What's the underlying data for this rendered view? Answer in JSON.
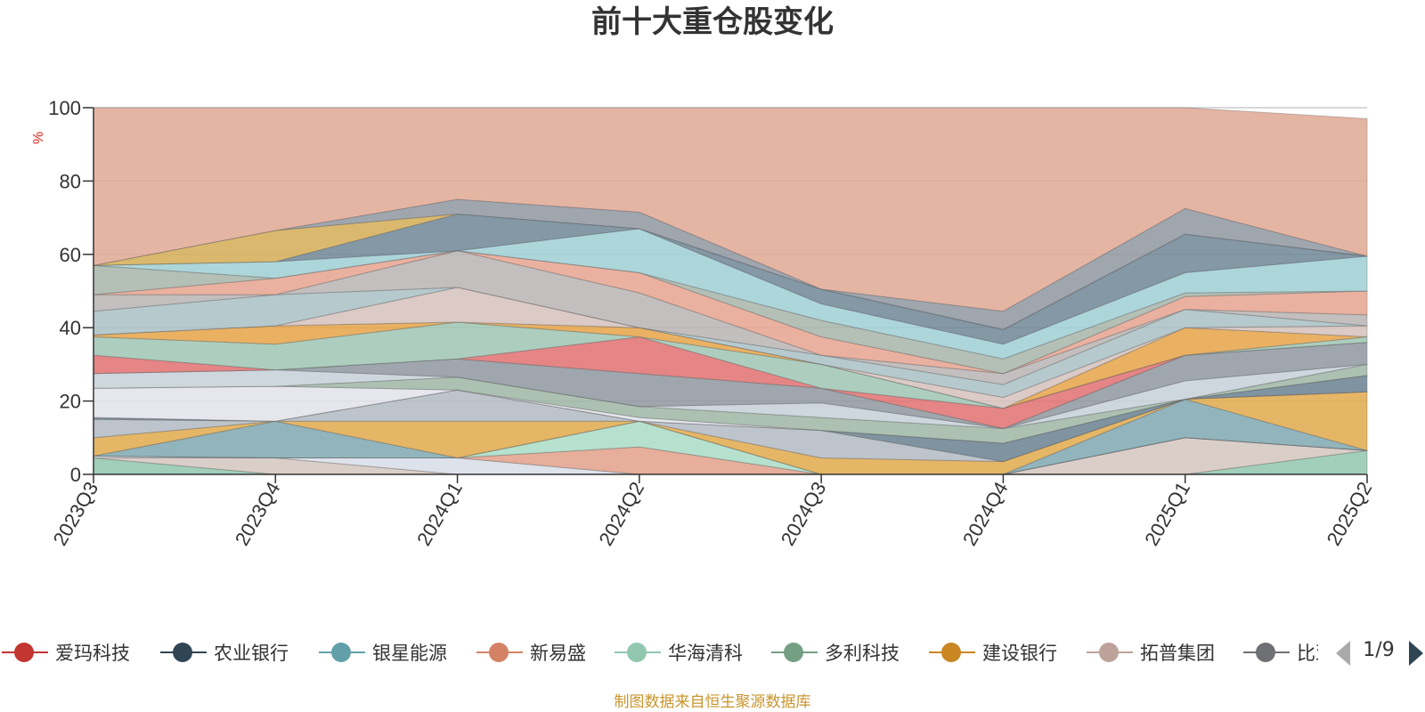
{
  "chart_data": {
    "type": "area",
    "title": "前十大重仓股变化",
    "ylabel": "%",
    "xlabel": "",
    "ylim": [
      0,
      100
    ],
    "yticks": [
      0,
      20,
      40,
      60,
      80,
      100
    ],
    "categories": [
      "2023Q3",
      "2023Q4",
      "2024Q1",
      "2024Q2",
      "2024Q3",
      "2024Q4",
      "2025Q1",
      "2025Q2"
    ],
    "stack_bounds": [
      [
        0,
        0,
        0,
        0,
        0,
        0,
        0,
        0
      ],
      [
        4.5,
        0,
        0,
        0,
        0,
        0,
        0,
        6.5
      ],
      [
        4.5,
        4.5,
        0,
        0,
        0,
        0,
        10,
        6.5
      ],
      [
        5,
        4.5,
        4.5,
        0,
        0,
        0,
        10,
        6.5
      ],
      [
        5,
        4.5,
        4.5,
        7.5,
        0,
        0,
        10,
        6.5
      ],
      [
        5,
        4.5,
        4.5,
        14.5,
        0,
        0,
        10,
        6.5
      ],
      [
        5,
        14.5,
        4.5,
        14.5,
        0,
        0,
        20.5,
        6.5
      ],
      [
        10,
        14.5,
        14.5,
        14.5,
        4.5,
        3.5,
        20.5,
        22.5
      ],
      [
        15,
        14.5,
        23,
        14.5,
        12,
        3.5,
        20.5,
        22.5
      ],
      [
        15.5,
        14.5,
        23,
        14.5,
        12,
        8.5,
        20.5,
        27
      ],
      [
        23.5,
        24,
        23,
        15.5,
        12,
        8.5,
        20.5,
        27
      ],
      [
        23.5,
        24,
        26.5,
        18.5,
        15.5,
        12.5,
        20.5,
        30
      ],
      [
        27.5,
        28.5,
        26.5,
        18.5,
        19.5,
        12.5,
        25.5,
        30
      ],
      [
        27.5,
        28.5,
        31.5,
        27.5,
        23.5,
        12.5,
        32.5,
        36
      ],
      [
        32.5,
        28.5,
        31.5,
        37.5,
        23.5,
        18,
        32.5,
        36
      ],
      [
        37.5,
        35.5,
        41.5,
        37.5,
        30,
        18,
        32.5,
        37.5
      ],
      [
        38,
        40.5,
        41.5,
        40,
        30,
        18,
        40,
        37.5
      ],
      [
        38,
        40.5,
        51,
        40,
        30,
        21,
        40,
        40.5
      ],
      [
        44.5,
        49,
        51,
        40,
        32.5,
        24.5,
        45,
        40.5
      ],
      [
        49,
        49,
        61,
        49.5,
        32.5,
        27.5,
        45,
        43.5
      ],
      [
        49,
        53.5,
        61,
        55,
        37.5,
        27.5,
        48.5,
        50
      ],
      [
        57,
        53.5,
        61,
        55,
        42,
        31.5,
        49.5,
        50
      ],
      [
        57,
        58,
        61,
        67,
        46.5,
        35.5,
        55,
        59.5
      ],
      [
        57,
        58,
        71,
        67,
        50.5,
        39.5,
        65.5,
        59.5
      ],
      [
        57,
        66.5,
        71,
        67,
        50.5,
        39.5,
        65.5,
        59.5
      ],
      [
        57,
        66.5,
        75,
        71.5,
        50.5,
        44.5,
        72.5,
        59.5
      ],
      [
        100,
        100,
        100,
        100,
        100,
        100,
        100,
        97
      ]
    ],
    "band_colors": [
      "#91c7ae",
      "#d4c5be",
      "#d8dde6",
      "#e2a08a",
      "#a9dcc5",
      "#7fa7b0",
      "#e0a94b",
      "#b3bac2",
      "#6a8090",
      "#e0e3ea",
      "#9fb6a6",
      "#c7d0d8",
      "#8f979f",
      "#e07070",
      "#9fc5b3",
      "#e6a348",
      "#d5c1bb",
      "#a9bfc4",
      "#b8b4b3",
      "#e6a38f",
      "#a7b5a9",
      "#9fcfd5",
      "#6f8696",
      "#d4ad55",
      "#8f97a0",
      "#e0a894"
    ],
    "band_opacity": 0.85,
    "legend": [
      {
        "name": "爱玛科技",
        "color": "#c23531"
      },
      {
        "name": "农业银行",
        "color": "#2f4554"
      },
      {
        "name": "银星能源",
        "color": "#61a0a8"
      },
      {
        "name": "新易盛",
        "color": "#d48265"
      },
      {
        "name": "华海清科",
        "color": "#91c7ae"
      },
      {
        "name": "多利科技",
        "color": "#749f83"
      },
      {
        "name": "建设银行",
        "color": "#ca8622"
      },
      {
        "name": "拓普集团",
        "color": "#bda29a"
      },
      {
        "name": "比亚迪",
        "color": "#6e7074"
      }
    ],
    "legend_page": "1/9",
    "legend_placement": "bottom",
    "grid": true
  },
  "source_note": "制图数据来自恒生聚源数据库"
}
